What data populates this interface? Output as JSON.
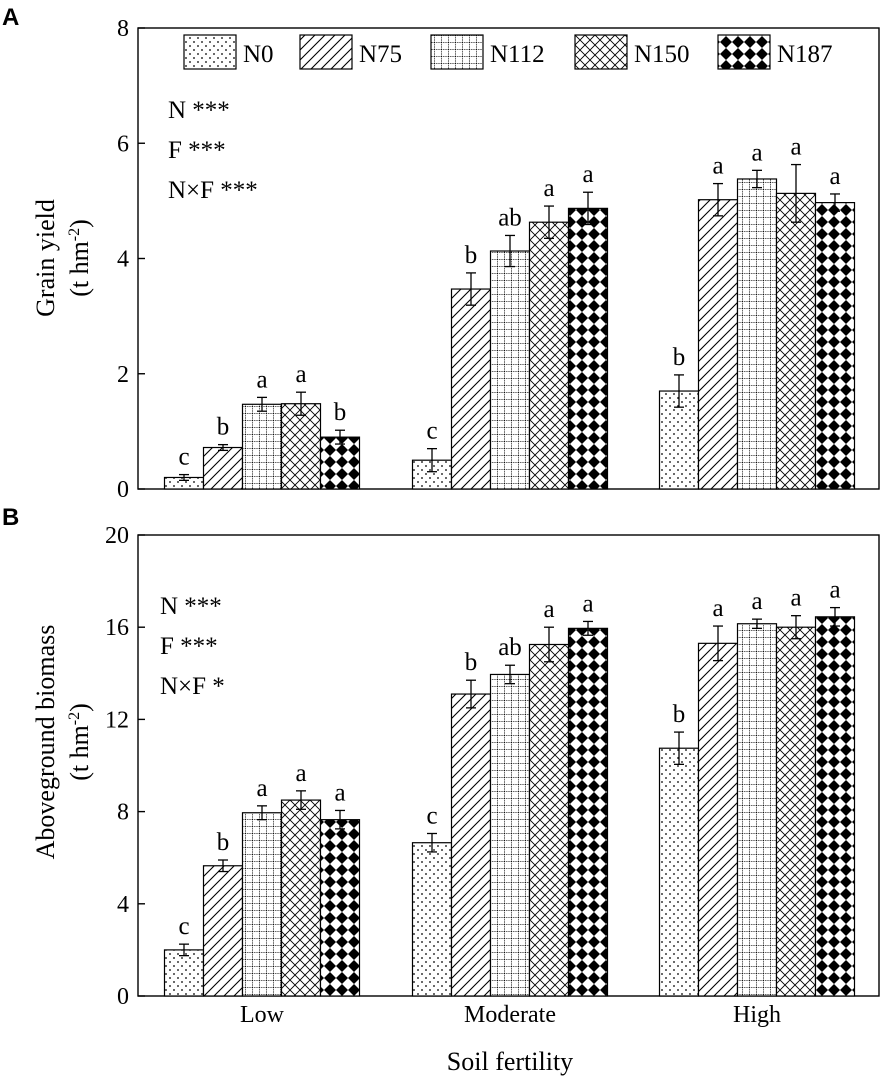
{
  "chart_data": {
    "type": "bar",
    "xlabel": "Soil fertility",
    "categories": [
      "Low",
      "Moderate",
      "High"
    ],
    "legend": [
      "N0",
      "N75",
      "N112",
      "N150",
      "N187"
    ],
    "panels": [
      {
        "tag": "A",
        "ylabel": "Grain yield",
        "yunit_base": "(t hm",
        "yunit_sup": "-2",
        "yunit_close": ")",
        "ylim": [
          0,
          8
        ],
        "yticks": [
          "0",
          "2",
          "4",
          "6",
          "8"
        ],
        "stats": [
          "N ***",
          "F ***",
          "N×F ***"
        ],
        "series": [
          {
            "name": "N0",
            "values": [
              0.2,
              0.5,
              1.7
            ],
            "errors": [
              0.05,
              0.2,
              0.28
            ],
            "letters": [
              "c",
              "c",
              "b"
            ]
          },
          {
            "name": "N75",
            "values": [
              0.72,
              3.47,
              5.02
            ],
            "errors": [
              0.05,
              0.28,
              0.28
            ],
            "letters": [
              "b",
              "b",
              "a"
            ]
          },
          {
            "name": "N112",
            "values": [
              1.47,
              4.13,
              5.38
            ],
            "errors": [
              0.12,
              0.27,
              0.15
            ],
            "letters": [
              "a",
              "ab",
              "a"
            ]
          },
          {
            "name": "N150",
            "values": [
              1.48,
              4.63,
              5.13
            ],
            "errors": [
              0.2,
              0.28,
              0.5
            ],
            "letters": [
              "a",
              "a",
              "a"
            ]
          },
          {
            "name": "N187",
            "values": [
              0.9,
              4.87,
              4.97
            ],
            "errors": [
              0.12,
              0.28,
              0.15
            ],
            "letters": [
              "b",
              "a",
              "a"
            ]
          }
        ]
      },
      {
        "tag": "B",
        "ylabel": "Aboveground biomass",
        "yunit_base": "(t hm",
        "yunit_sup": "-2",
        "yunit_close": ")",
        "ylim": [
          0,
          20
        ],
        "yticks": [
          "0",
          "4",
          "8",
          "12",
          "16",
          "20"
        ],
        "stats": [
          "N ***",
          "F ***",
          "N×F *"
        ],
        "series": [
          {
            "name": "N0",
            "values": [
              2.0,
              6.65,
              10.75
            ],
            "errors": [
              0.25,
              0.4,
              0.7
            ],
            "letters": [
              "c",
              "c",
              "b"
            ]
          },
          {
            "name": "N75",
            "values": [
              5.65,
              13.1,
              15.3
            ],
            "errors": [
              0.25,
              0.6,
              0.75
            ],
            "letters": [
              "b",
              "b",
              "a"
            ]
          },
          {
            "name": "N112",
            "values": [
              7.95,
              13.95,
              16.15
            ],
            "errors": [
              0.3,
              0.4,
              0.2
            ],
            "letters": [
              "a",
              "ab",
              "a"
            ]
          },
          {
            "name": "N150",
            "values": [
              8.5,
              15.25,
              16.0
            ],
            "errors": [
              0.4,
              0.75,
              0.5
            ],
            "letters": [
              "a",
              "a",
              "a"
            ]
          },
          {
            "name": "N187",
            "values": [
              7.65,
              15.95,
              16.45
            ],
            "errors": [
              0.4,
              0.3,
              0.4
            ],
            "letters": [
              "a",
              "a",
              "a"
            ]
          }
        ]
      }
    ]
  }
}
